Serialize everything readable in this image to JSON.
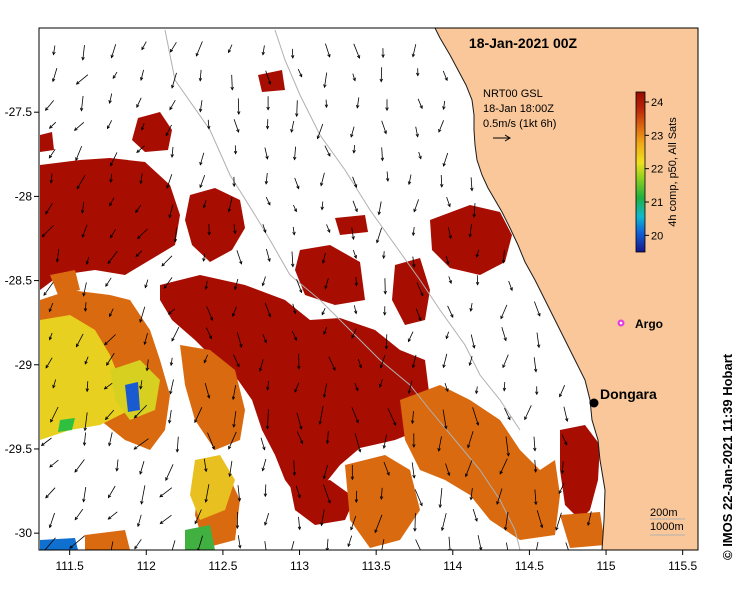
{
  "title": "18-Jan-2021 00Z",
  "axes": {
    "x_ticks": [
      "111.5",
      "112",
      "112.5",
      "113",
      "113.5",
      "114",
      "114.5",
      "115",
      "115.5"
    ],
    "y_ticks": [
      "-27.5",
      "-28",
      "-28.5",
      "-29",
      "-29.5",
      "-30"
    ],
    "x_range": [
      111.3,
      115.6
    ],
    "y_range": [
      -30.1,
      -27.0
    ]
  },
  "current_legend": {
    "line1": "NRT00 GSL",
    "line2": "18-Jan 18:00Z",
    "line3": "0.5m/s (1kt 6h)"
  },
  "colorbar": {
    "label": "4h comp, p50, All Sats",
    "ticks": [
      "24",
      "23",
      "22",
      "21",
      "20"
    ],
    "range": [
      19.5,
      24.3
    ]
  },
  "places": {
    "argo": "Argo",
    "dongara": "Dongara"
  },
  "depth_legend": {
    "line1": "200m",
    "line2": "1000m"
  },
  "credit": "© IMOS 22-Jan-2021 11:39 Hobart",
  "colors": {
    "land": "#f9c79a",
    "sst_warm": "#a80d02",
    "sst_mid": "#d96a10",
    "sst_yellow": "#e8d020",
    "argo": "#e040e0"
  }
}
